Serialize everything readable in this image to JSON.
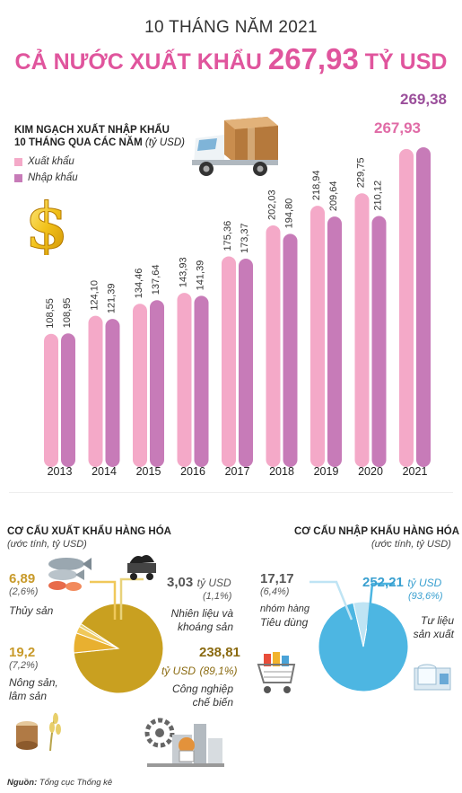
{
  "header": {
    "period": "10 THÁNG NĂM 2021",
    "headline_prefix": "CẢ NƯỚC XUẤT KHẨU",
    "headline_value": "267,93",
    "headline_unit": "TỶ USD"
  },
  "chart_data": [
    {
      "type": "bar",
      "title": "KIM NGẠCH XUẤT NHẬP KHẨU",
      "subtitle": "10 THÁNG QUA CÁC NĂM",
      "unit": "(tỷ USD)",
      "categories": [
        "2013",
        "2014",
        "2015",
        "2016",
        "2017",
        "2018",
        "2019",
        "2020",
        "2021"
      ],
      "series": [
        {
          "name": "Xuất khẩu",
          "color": "#f4a9c8",
          "values": [
            108.55,
            124.1,
            134.46,
            143.93,
            175.36,
            202.03,
            218.94,
            229.75,
            267.93
          ],
          "labels": [
            "108,55",
            "124,10",
            "134,46",
            "143,93",
            "175,36",
            "202,03",
            "218,94",
            "229,75",
            "267,93"
          ]
        },
        {
          "name": "Nhập khẩu",
          "color": "#c77bb8",
          "values": [
            108.95,
            121.39,
            137.64,
            141.39,
            173.37,
            194.8,
            209.64,
            210.12,
            269.38
          ],
          "labels": [
            "108,95",
            "121,39",
            "137,64",
            "141,39",
            "173,37",
            "194,80",
            "209,64",
            "210,12",
            "269,38"
          ]
        }
      ],
      "ylim": [
        0,
        280
      ]
    },
    {
      "type": "pie",
      "title": "CƠ CẤU XUẤT KHẨU HÀNG HÓA",
      "unit": "(ước tính, tỷ USD)",
      "slices": [
        {
          "name": "Thủy sản",
          "value": 6.89,
          "value_label": "6,89",
          "percent": "(2,6%)",
          "color": "#f0c85a"
        },
        {
          "name": "Nhiên liệu và khoáng sản",
          "value": 3.03,
          "value_label": "3,03",
          "unit_label": "tỷ USD",
          "percent": "(1,1%)",
          "color": "#e8d27a"
        },
        {
          "name": "Công nghiệp chế biến",
          "value": 238.81,
          "value_label": "238,81",
          "unit_label": "tỷ USD",
          "percent": "(89,1%)",
          "color": "#c9a020"
        },
        {
          "name": "Nông sản, lâm sản",
          "value": 19.2,
          "value_label": "19,2",
          "percent": "(7,2%)",
          "color": "#e8b030"
        }
      ]
    },
    {
      "type": "pie",
      "title": "CƠ CẤU NHẬP KHẨU HÀNG HÓA",
      "unit": "(ước tính, tỷ USD)",
      "slices": [
        {
          "name": "Tư liệu sản xuất",
          "value": 252.21,
          "value_label": "252,21",
          "unit_label": "tỷ USD",
          "percent": "(93,6%)",
          "color": "#4db6e2"
        },
        {
          "name": "nhóm hàng Tiêu dùng",
          "value": 17.17,
          "value_label": "17,17",
          "percent": "(6,4%)",
          "color": "#bfe4f4"
        }
      ]
    }
  ],
  "labels": {
    "thuy_san": "Thủy sản",
    "nhien_lieu_1": "Nhiên liệu và",
    "nhien_lieu_2": "khoáng sản",
    "nong_san_1": "Nông sản,",
    "nong_san_2": "lâm sản",
    "cong_nghiep_1": "Công nghiệp",
    "cong_nghiep_2": "chế biến",
    "tieu_dung_1": "nhóm hàng",
    "tieu_dung_2": "Tiêu dùng",
    "tu_lieu_1": "Tư liệu",
    "tu_lieu_2": "sản xuất"
  },
  "source": {
    "prefix": "Nguồn:",
    "text": "Tổng cục Thống kê"
  }
}
